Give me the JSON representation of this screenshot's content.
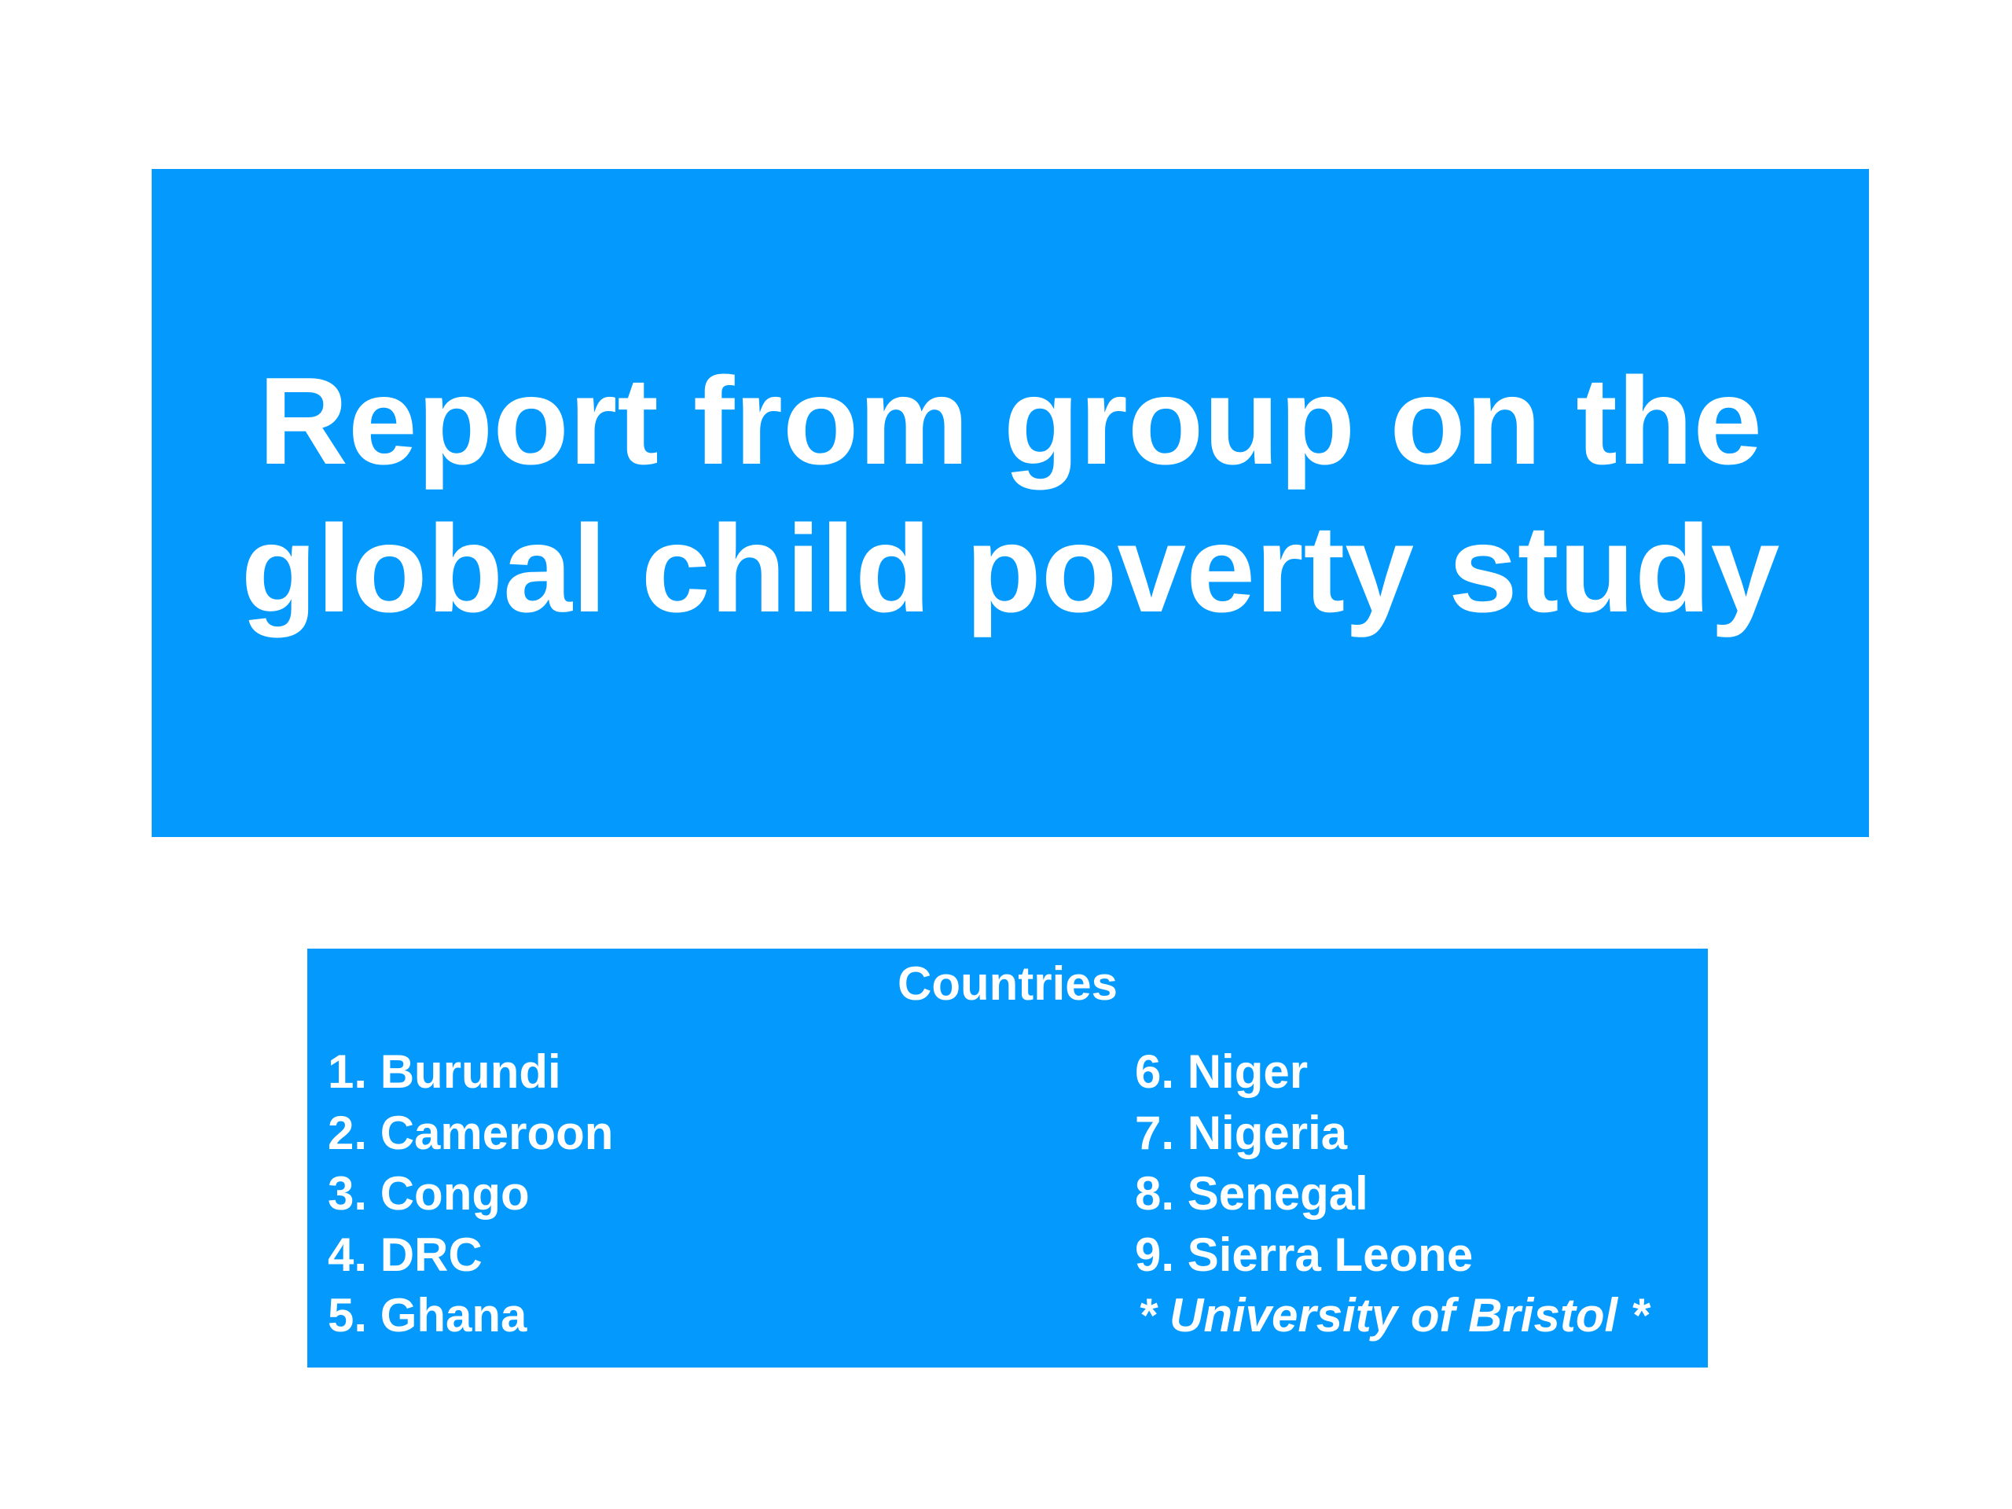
{
  "title": {
    "line1": "Report from group on the",
    "line2": "global child poverty study"
  },
  "countries": {
    "heading": "Countries",
    "left_column": [
      "1. Burundi",
      "2. Cameroon",
      "3. Congo",
      "4. DRC",
      "5. Ghana"
    ],
    "right_column": [
      "6. Niger",
      "7. Nigeria",
      "8. Senegal",
      "9. Sierra Leone"
    ],
    "note": "* University of Bristol *"
  },
  "colors": {
    "box_blue": "#0399fd",
    "text": "#ffffff",
    "background": "#ffffff"
  }
}
